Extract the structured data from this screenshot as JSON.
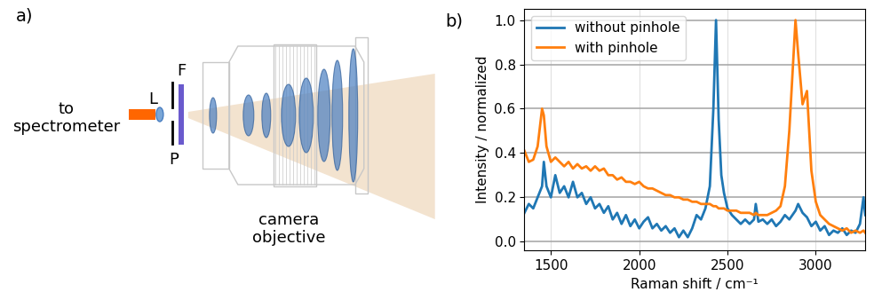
{
  "diagram": {
    "panel_label": "a)",
    "fiber_label": "to\nspectrometer",
    "lens_label": "L",
    "filter_label": "F",
    "pinhole_label": "P",
    "objective_label": "camera\nobjective"
  },
  "chart_data": {
    "type": "line",
    "panel_label": "b)",
    "xlabel": "Raman shift / cm⁻¹",
    "ylabel": "Intensity / normalized",
    "x": [
      1350,
      1375,
      1400,
      1425,
      1450,
      1460,
      1475,
      1500,
      1525,
      1550,
      1575,
      1600,
      1625,
      1650,
      1675,
      1700,
      1725,
      1750,
      1775,
      1800,
      1825,
      1850,
      1875,
      1900,
      1925,
      1950,
      1975,
      2000,
      2025,
      2050,
      2075,
      2100,
      2125,
      2150,
      2175,
      2200,
      2225,
      2250,
      2275,
      2300,
      2325,
      2350,
      2375,
      2400,
      2420,
      2435,
      2450,
      2465,
      2480,
      2500,
      2525,
      2550,
      2575,
      2600,
      2625,
      2650,
      2660,
      2675,
      2700,
      2725,
      2750,
      2775,
      2800,
      2825,
      2850,
      2885,
      2900,
      2925,
      2950,
      2975,
      3000,
      3025,
      3050,
      3075,
      3100,
      3125,
      3150,
      3175,
      3200,
      3225,
      3250,
      3270,
      3280
    ],
    "series": [
      {
        "name": "without pinhole",
        "color": "#1f77b4",
        "values": [
          0.13,
          0.17,
          0.15,
          0.2,
          0.25,
          0.36,
          0.25,
          0.2,
          0.3,
          0.22,
          0.25,
          0.2,
          0.27,
          0.2,
          0.22,
          0.17,
          0.2,
          0.15,
          0.17,
          0.13,
          0.16,
          0.1,
          0.13,
          0.08,
          0.12,
          0.07,
          0.1,
          0.06,
          0.09,
          0.11,
          0.06,
          0.08,
          0.05,
          0.07,
          0.04,
          0.06,
          0.02,
          0.05,
          0.02,
          0.06,
          0.12,
          0.1,
          0.15,
          0.25,
          0.6,
          1.0,
          0.55,
          0.3,
          0.22,
          0.15,
          0.12,
          0.1,
          0.08,
          0.1,
          0.08,
          0.1,
          0.17,
          0.09,
          0.1,
          0.08,
          0.1,
          0.07,
          0.09,
          0.12,
          0.1,
          0.14,
          0.17,
          0.13,
          0.11,
          0.07,
          0.09,
          0.05,
          0.07,
          0.03,
          0.05,
          0.04,
          0.06,
          0.03,
          0.05,
          0.04,
          0.08,
          0.2,
          0.12
        ]
      },
      {
        "name": "with pinhole",
        "color": "#ff7f0e",
        "values": [
          0.41,
          0.36,
          0.37,
          0.43,
          0.6,
          0.57,
          0.43,
          0.36,
          0.38,
          0.36,
          0.34,
          0.36,
          0.33,
          0.35,
          0.33,
          0.34,
          0.32,
          0.34,
          0.32,
          0.33,
          0.3,
          0.3,
          0.28,
          0.29,
          0.27,
          0.27,
          0.26,
          0.27,
          0.25,
          0.24,
          0.24,
          0.23,
          0.22,
          0.21,
          0.21,
          0.2,
          0.2,
          0.19,
          0.19,
          0.18,
          0.18,
          0.17,
          0.17,
          0.17,
          0.16,
          0.16,
          0.15,
          0.15,
          0.15,
          0.14,
          0.14,
          0.14,
          0.13,
          0.13,
          0.13,
          0.12,
          0.13,
          0.12,
          0.12,
          0.12,
          0.13,
          0.14,
          0.16,
          0.25,
          0.5,
          1.0,
          0.85,
          0.62,
          0.68,
          0.32,
          0.18,
          0.12,
          0.1,
          0.08,
          0.07,
          0.06,
          0.05,
          0.06,
          0.04,
          0.05,
          0.04,
          0.05,
          0.04
        ]
      }
    ],
    "xlim": [
      1350,
      3280
    ],
    "ylim": [
      -0.04,
      1.05
    ],
    "xticks": [
      1500,
      2000,
      2500,
      3000
    ],
    "yticks": [
      {
        "value": 0,
        "label": "0.0"
      },
      0.2,
      0.4,
      0.6,
      0.8,
      {
        "value": 1,
        "label": "1.0"
      }
    ],
    "grid": true,
    "legend": "upper left"
  }
}
